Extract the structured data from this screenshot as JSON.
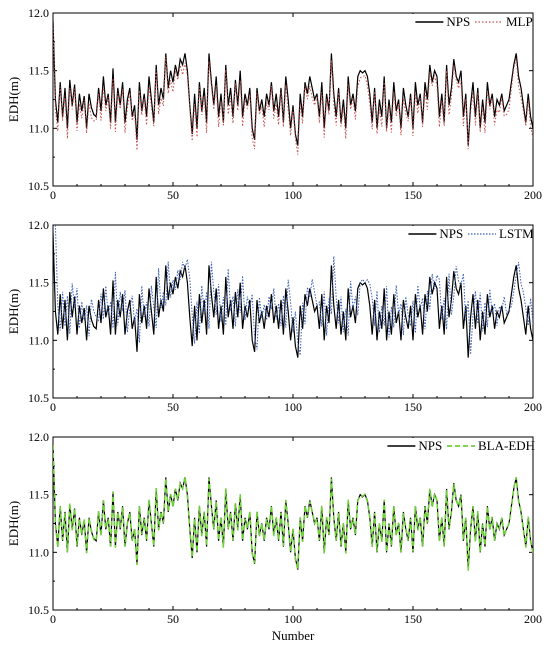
{
  "colors": {
    "nps": "#000000",
    "mlp": "#c0504d",
    "lstm": "#3a5fb5",
    "bla": "#6fd13a",
    "axis": "#000000"
  },
  "xlabel": "Number",
  "chart_data": [
    {
      "type": "line",
      "ylabel": "EDH(m)",
      "xlim": [
        0,
        200
      ],
      "ylim": [
        10.5,
        12.0
      ],
      "xticks": [
        0,
        50,
        100,
        150,
        200
      ],
      "yticks": [
        10.5,
        11.0,
        11.5,
        12.0
      ],
      "legend_position": "top-right",
      "series": [
        {
          "name": "NPS",
          "style": "solid"
        },
        {
          "name": "MLP",
          "style": "dotted"
        }
      ]
    },
    {
      "type": "line",
      "ylabel": "EDH(m)",
      "xlim": [
        0,
        200
      ],
      "ylim": [
        10.5,
        12.0
      ],
      "xticks": [
        0,
        50,
        100,
        150,
        200
      ],
      "yticks": [
        10.5,
        11.0,
        11.5,
        12.0
      ],
      "legend_position": "top-right",
      "series": [
        {
          "name": "NPS",
          "style": "solid"
        },
        {
          "name": "LSTM",
          "style": "dotted"
        }
      ]
    },
    {
      "type": "line",
      "ylabel": "EDH(m)",
      "xlim": [
        0,
        200
      ],
      "ylim": [
        10.5,
        12.0
      ],
      "xticks": [
        0,
        50,
        100,
        150,
        200
      ],
      "yticks": [
        10.5,
        11.0,
        11.5,
        12.0
      ],
      "legend_position": "top-right",
      "series": [
        {
          "name": "NPS",
          "style": "solid"
        },
        {
          "name": "BLA-EDH",
          "style": "dashed"
        }
      ]
    }
  ]
}
